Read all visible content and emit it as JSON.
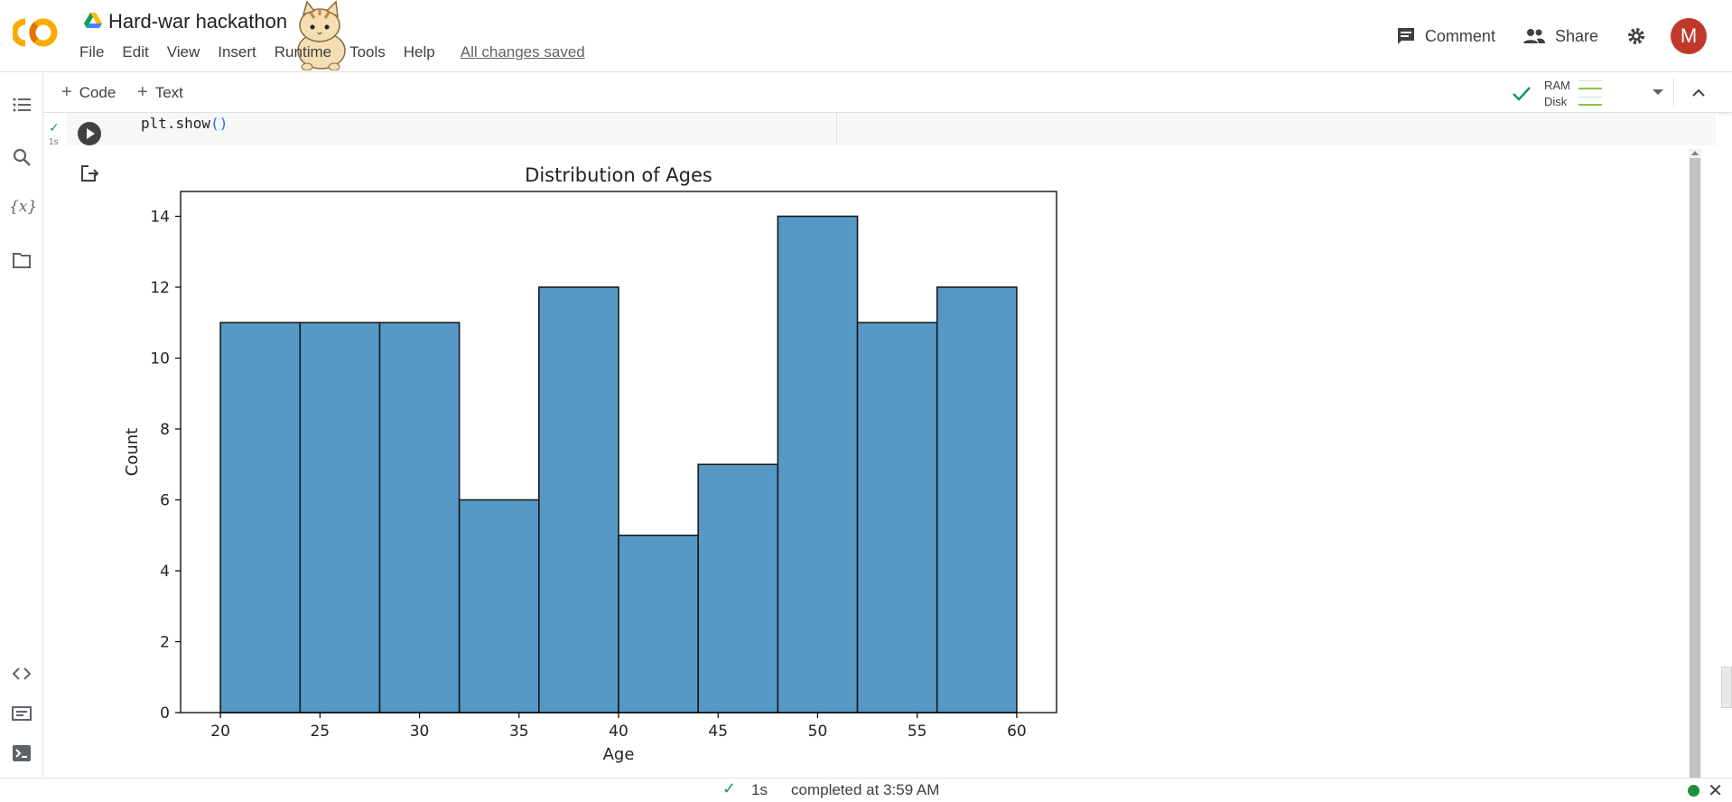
{
  "app": {
    "title": "Hard-war hackathon",
    "menu": [
      "File",
      "Edit",
      "View",
      "Insert",
      "Runtime",
      "Tools",
      "Help"
    ],
    "saved_status": "All changes saved",
    "comment_label": "Comment",
    "share_label": "Share",
    "avatar_letter": "M"
  },
  "toolbar": {
    "add_code_label": "Code",
    "add_text_label": "Text",
    "ram_label": "RAM",
    "disk_label": "Disk"
  },
  "cell": {
    "code_fn": "plt.show",
    "code_parens": "()",
    "exec_time": "1s"
  },
  "status": {
    "duration": "1s",
    "completed": "completed at 3:59 AM"
  },
  "colors": {
    "bar_fill": "#5698c6",
    "bar_edge": "#1a1a1a",
    "avatar": "#c0392b",
    "success": "#0f9d58"
  },
  "chart_data": {
    "type": "bar",
    "title": "Distribution of Ages",
    "xlabel": "Age",
    "ylabel": "Count",
    "bin_edges": [
      20,
      24,
      28,
      32,
      36,
      40,
      44,
      48,
      52,
      56,
      60
    ],
    "values": [
      11,
      11,
      11,
      6,
      12,
      5,
      7,
      14,
      11,
      12
    ],
    "xlim": [
      18,
      62
    ],
    "ylim": [
      0,
      14.7
    ],
    "xticks": [
      20,
      25,
      30,
      35,
      40,
      45,
      50,
      55,
      60
    ],
    "yticks": [
      0,
      2,
      4,
      6,
      8,
      10,
      12,
      14
    ],
    "grid": false,
    "legend": "none"
  }
}
